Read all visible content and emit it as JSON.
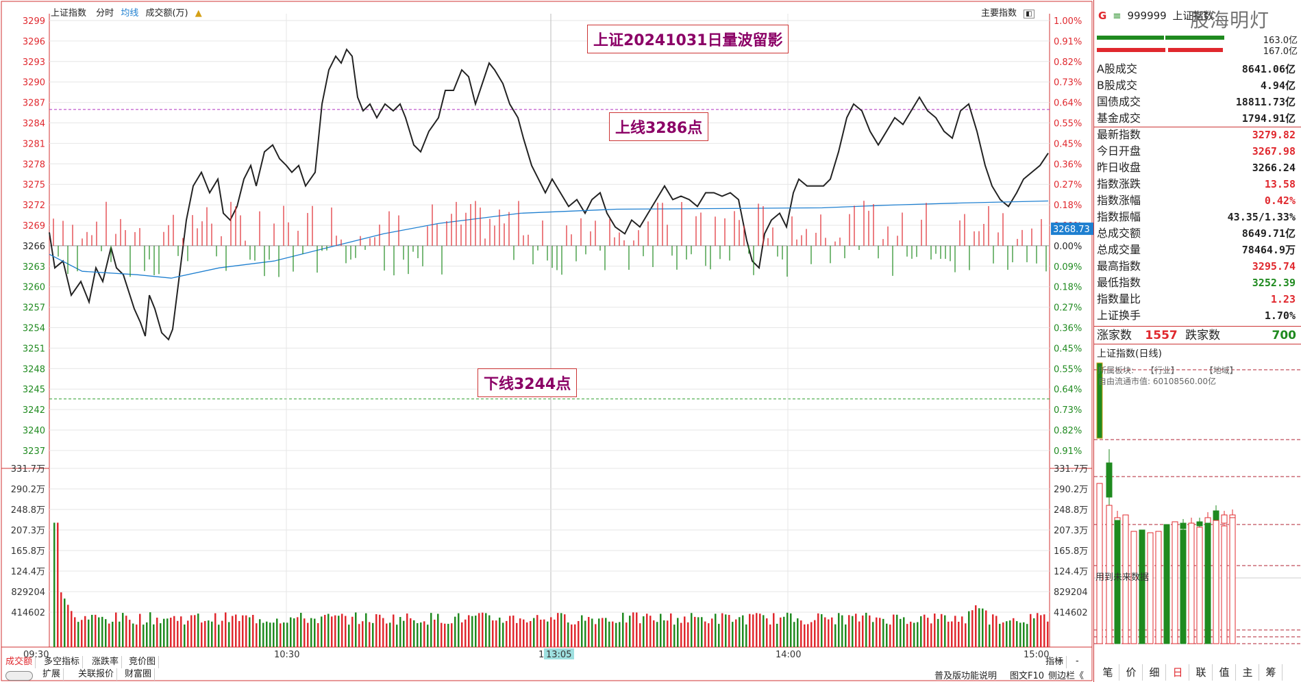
{
  "header": {
    "title": "上证指数",
    "mode": "分时",
    "avg": "均线",
    "vol": "成交额(万)",
    "right_label": "主要指数"
  },
  "annotations": {
    "title": "上证20241031日量波留影",
    "upper": "上线3286点",
    "lower": "下线3244点"
  },
  "price_axis": {
    "labels": [
      "3299",
      "3296",
      "3293",
      "3290",
      "3287",
      "3284",
      "3281",
      "3278",
      "3275",
      "3272",
      "3269",
      "3266",
      "3263",
      "3260",
      "3257",
      "3254",
      "3251",
      "3248",
      "3245",
      "3242",
      "3240",
      "3237"
    ],
    "pct_labels": [
      "1.00%",
      "0.91%",
      "0.82%",
      "0.73%",
      "0.64%",
      "0.55%",
      "0.45%",
      "0.36%",
      "0.27%",
      "0.18%",
      "0.09%",
      "0.00%",
      "0.09%",
      "0.18%",
      "0.27%",
      "0.36%",
      "0.45%",
      "0.55%",
      "0.64%",
      "0.73%",
      "0.82%",
      "0.91%"
    ],
    "current_tag": "3268.73"
  },
  "volume_axis": {
    "labels": [
      "331.7万",
      "290.2万",
      "248.8万",
      "207.3万",
      "165.8万",
      "124.4万",
      "829204",
      "414602"
    ]
  },
  "time_axis": {
    "labels": [
      "09:30",
      "10:30",
      "13:00",
      "14:00",
      "15:00"
    ],
    "cursor": "13:05"
  },
  "tabs_row1": [
    "成交额",
    "多空指标",
    "涨跌率",
    "竞价图"
  ],
  "tabs_row2": [
    "扩展",
    "关联报价",
    "财富圈"
  ],
  "right_tabs": [
    "指标",
    "+",
    "-"
  ],
  "footer_right": [
    "普及版功能说明",
    "图文F10",
    "侧边栏《"
  ],
  "side": {
    "code_prefix": "G",
    "code": "999999",
    "name": "上证指数",
    "small1": "163.0亿",
    "small2": "167.0亿",
    "watermark": "股海明灯",
    "stats": [
      {
        "k": "A股成交",
        "v": "8641.06亿",
        "c": "#222"
      },
      {
        "k": "B股成交",
        "v": "4.94亿",
        "c": "#222"
      },
      {
        "k": "国债成交",
        "v": "18811.73亿",
        "c": "#222"
      },
      {
        "k": "基金成交",
        "v": "1794.91亿",
        "c": "#222"
      },
      {
        "k": "最新指数",
        "v": "3279.82",
        "c": "#e0282e"
      },
      {
        "k": "今日开盘",
        "v": "3267.98",
        "c": "#e0282e"
      },
      {
        "k": "昨日收盘",
        "v": "3266.24",
        "c": "#222"
      },
      {
        "k": "指数涨跌",
        "v": "13.58",
        "c": "#e0282e"
      },
      {
        "k": "指数涨幅",
        "v": "0.42%",
        "c": "#e0282e"
      },
      {
        "k": "指数振幅",
        "v": "43.35/1.33%",
        "c": "#222"
      },
      {
        "k": "总成交额",
        "v": "8649.71亿",
        "c": "#222"
      },
      {
        "k": "总成交量",
        "v": "78464.9万",
        "c": "#222"
      },
      {
        "k": "最高指数",
        "v": "3295.74",
        "c": "#e0282e"
      },
      {
        "k": "最低指数",
        "v": "3252.39",
        "c": "#1f8a1f"
      },
      {
        "k": "指数量比",
        "v": "1.23",
        "c": "#e0282e"
      },
      {
        "k": "上证换手",
        "v": "1.70%",
        "c": "#222"
      }
    ],
    "up_label": "涨家数",
    "up_value": "1557",
    "down_label": "跌家数",
    "down_value": "700",
    "daily_title": "上证指数(日线)",
    "sector_labels": [
      "所属板块:",
      "【行业】",
      "【地域】"
    ],
    "float_value": "自由流通市值: 60108560.00亿",
    "future_label": "用到未来数据",
    "bottom_tabs": [
      "笔",
      "价",
      "细",
      "日",
      "联",
      "值",
      "主",
      "筹"
    ]
  },
  "colors": {
    "up": "#e0282e",
    "down": "#1f8a1f",
    "avg_line": "#1e7fd0",
    "annotation_text": "#8b0066"
  }
}
